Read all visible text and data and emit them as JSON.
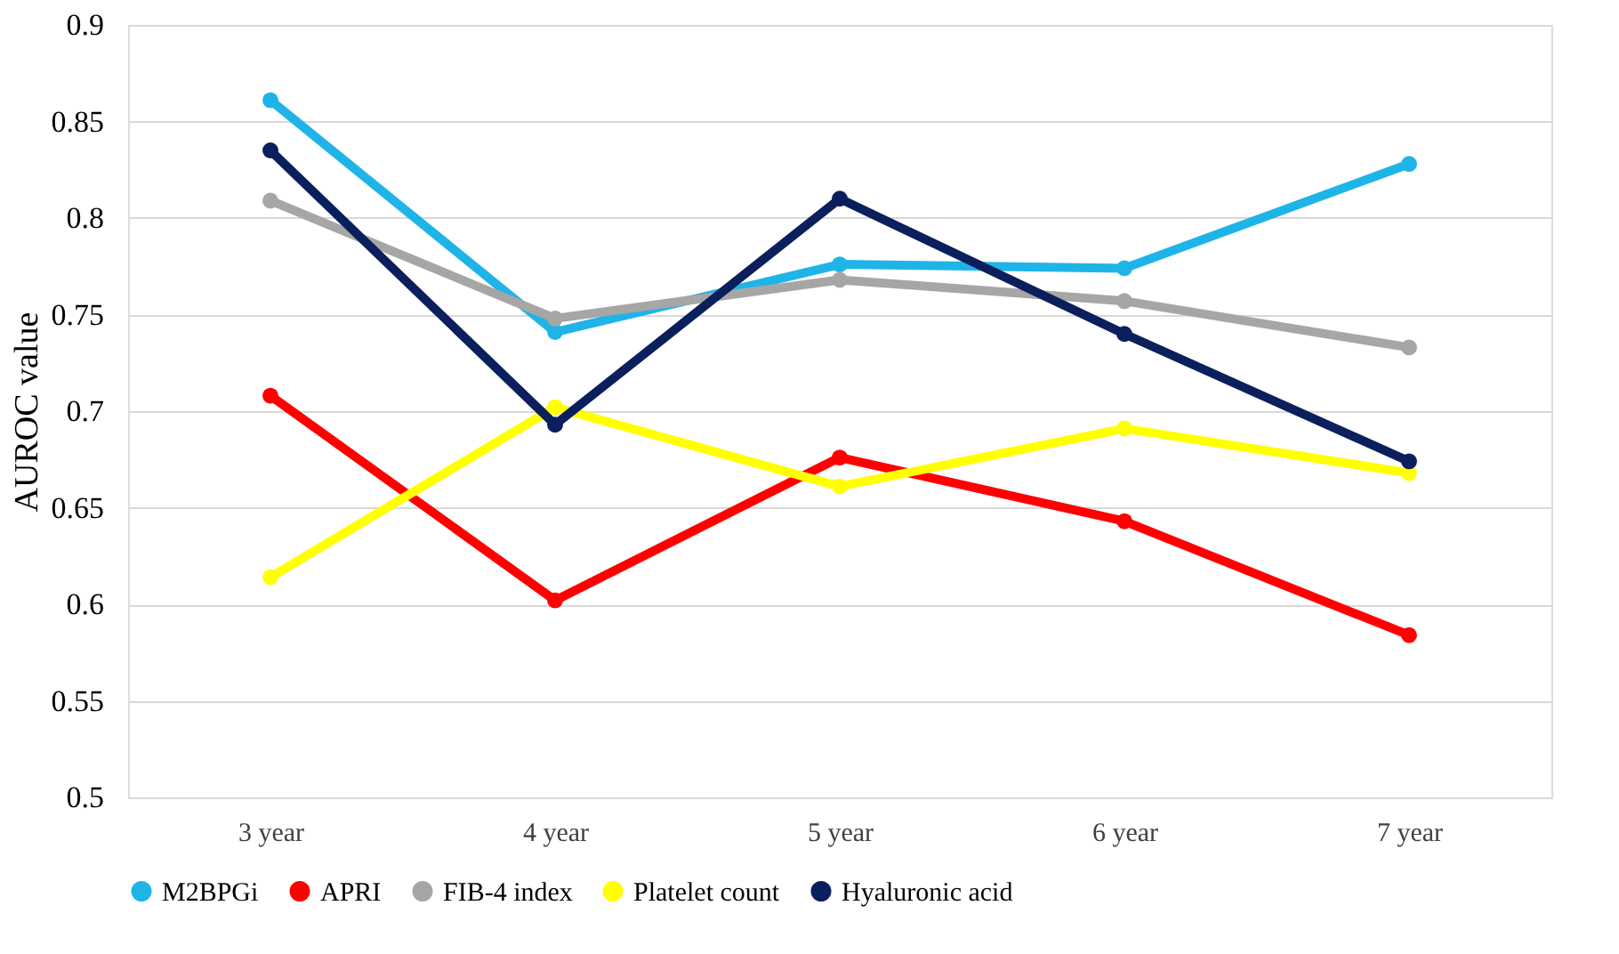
{
  "chart_data": {
    "type": "line",
    "ylabel": "AUROC value",
    "categories": [
      "3 year",
      "4 year",
      "5 year",
      "6 year",
      "7 year"
    ],
    "series": [
      {
        "name": "M2BPGi",
        "color": "#1fb4e8",
        "values": [
          0.861,
          0.741,
          0.776,
          0.774,
          0.828
        ]
      },
      {
        "name": "APRI",
        "color": "#ff0000",
        "values": [
          0.708,
          0.602,
          0.676,
          0.643,
          0.584
        ]
      },
      {
        "name": "FIB-4 index",
        "color": "#a6a6a6",
        "values": [
          0.809,
          0.748,
          0.768,
          0.757,
          0.733
        ]
      },
      {
        "name": "Platelet count",
        "color": "#ffff00",
        "values": [
          0.614,
          0.702,
          0.661,
          0.691,
          0.668
        ]
      },
      {
        "name": "Hyaluronic acid",
        "color": "#0a1f5c",
        "values": [
          0.835,
          0.693,
          0.81,
          0.74,
          0.674
        ]
      }
    ],
    "ylim": [
      0.5,
      0.9
    ],
    "yticks": [
      0.5,
      0.55,
      0.6,
      0.65,
      0.7,
      0.75,
      0.8,
      0.85,
      0.9
    ],
    "grid": "y",
    "legend": "bottom",
    "marker": "circle",
    "line_style": "solid"
  }
}
